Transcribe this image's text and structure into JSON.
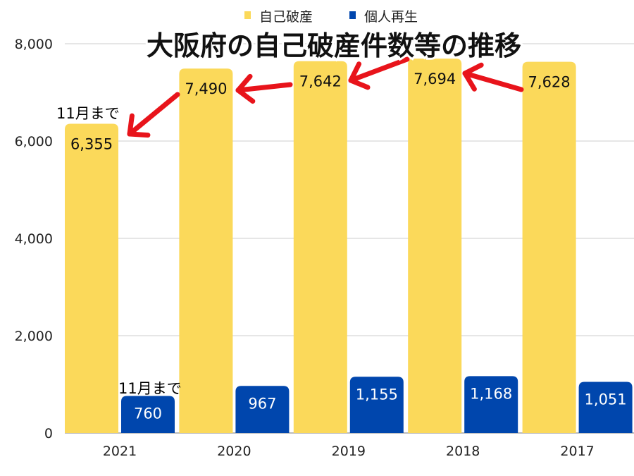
{
  "chart_data": {
    "type": "bar",
    "title": "大阪府の自己破産件数等の推移",
    "categories": [
      "2021",
      "2020",
      "2019",
      "2018",
      "2017"
    ],
    "series": [
      {
        "name": "自己破産",
        "color": "#FBD95A",
        "values": [
          6355,
          7490,
          7642,
          7694,
          7628
        ],
        "labels": [
          "6,355",
          "7,490",
          "7,642",
          "7,694",
          "7,628"
        ]
      },
      {
        "name": "個人再生",
        "color": "#0046AD",
        "values": [
          760,
          967,
          1155,
          1168,
          1051
        ],
        "labels": [
          "760",
          "967",
          "1,155",
          "1,168",
          "1,051"
        ]
      }
    ],
    "ylim": [
      0,
      8000
    ],
    "yticks": [
      0,
      2000,
      4000,
      6000,
      8000
    ],
    "ytick_labels": [
      "0",
      "2,000",
      "4,000",
      "6,000",
      "8,000"
    ],
    "grid": true,
    "legend_position": "top",
    "annotations": [
      "11月まで",
      "11月まで"
    ],
    "arrow_color": "#E8141B"
  }
}
